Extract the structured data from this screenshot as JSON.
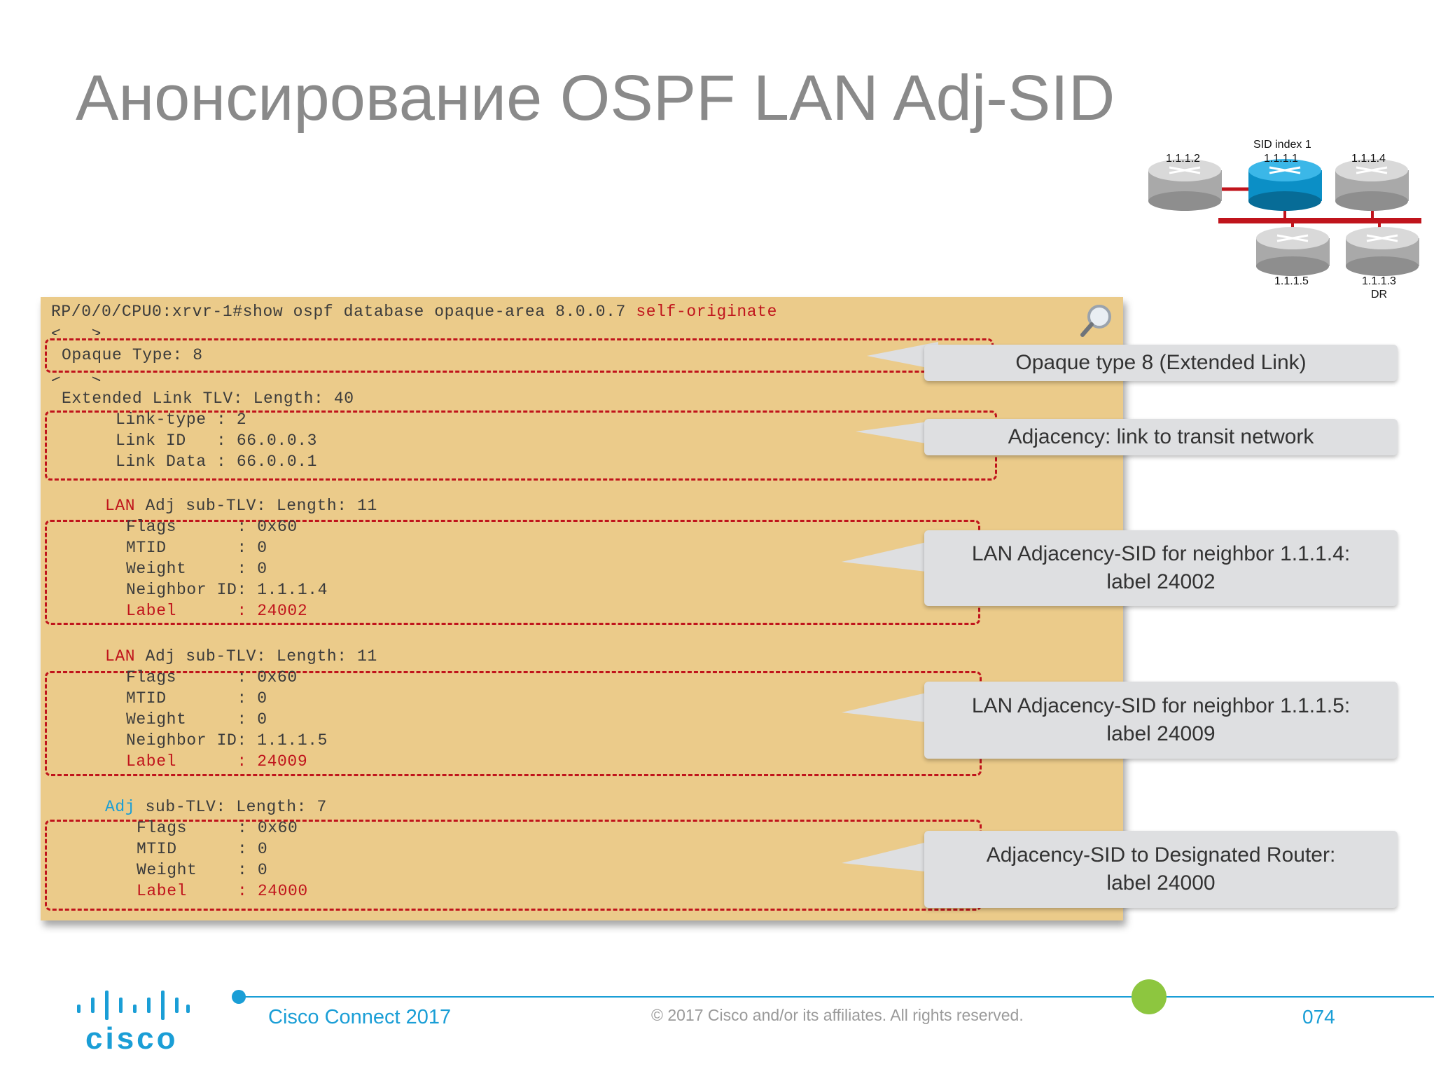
{
  "title": "Анонсирование OSPF LAN Adj-SID",
  "diagram": {
    "sid_label": "SID index 1",
    "routers": [
      {
        "id": "1.1.1.2"
      },
      {
        "id": "1.1.1.1"
      },
      {
        "id": "1.1.1.4"
      },
      {
        "id": "1.1.1.5"
      },
      {
        "id": "1.1.1.3",
        "role": "DR"
      }
    ]
  },
  "code": {
    "command_prefix": "RP/0/0/CPU0:xrvr-1#show ospf database opaque-area 8.0.0.7 ",
    "command_suffix": "self-originate",
    "ellipsis": "<...>",
    "opaque_type": "Opaque Type: 8",
    "ext_link_tlv": "Extended Link TLV: Length: 40",
    "link_lines": [
      "Link-type : 2",
      "Link ID   : 66.0.0.3",
      "Link Data : 66.0.0.1"
    ],
    "lan_kw": "LAN",
    "adj_kw": "Adj",
    "lan_sub_rest": " Adj sub-TLV: Length: 11",
    "adj_sub_rest": " sub-TLV: Length: 7",
    "block1": [
      "Flags      : 0x60",
      "MTID       : 0",
      "Weight     : 0",
      "Neighbor ID: 1.1.1.4"
    ],
    "block1_label": "Label      : 24002",
    "block2": [
      "Flags      : 0x60",
      "MTID       : 0",
      "Weight     : 0",
      "Neighbor ID: 1.1.1.5"
    ],
    "block2_label": "Label      : 24009",
    "block3": [
      "Flags     : 0x60",
      "MTID      : 0",
      "Weight    : 0"
    ],
    "block3_label": "Label     : 24000"
  },
  "callouts": {
    "c1": "Opaque type 8 (Extended Link)",
    "c2": "Adjacency: link to transit network",
    "c3_line1": "LAN Adjacency-SID for neighbor 1.1.1.4:",
    "c3_line2": "label 24002",
    "c4_line1": "LAN Adjacency-SID for neighbor 1.1.1.5:",
    "c4_line2": "label 24009",
    "c5_line1": "Adjacency-SID to Designated Router:",
    "c5_line2": "label 24000"
  },
  "footer": {
    "logo_text": "cisco",
    "event": "Cisco Connect 2017",
    "copyright": "© 2017  Cisco and/or its affiliates. All rights reserved.",
    "page": "074"
  },
  "colors": {
    "panel": "#ebcb8a",
    "accent_red": "#c0141c",
    "accent_blue": "#1a9ed6",
    "callout_bg": "#dedfe1",
    "footer_green": "#8dc63f"
  }
}
